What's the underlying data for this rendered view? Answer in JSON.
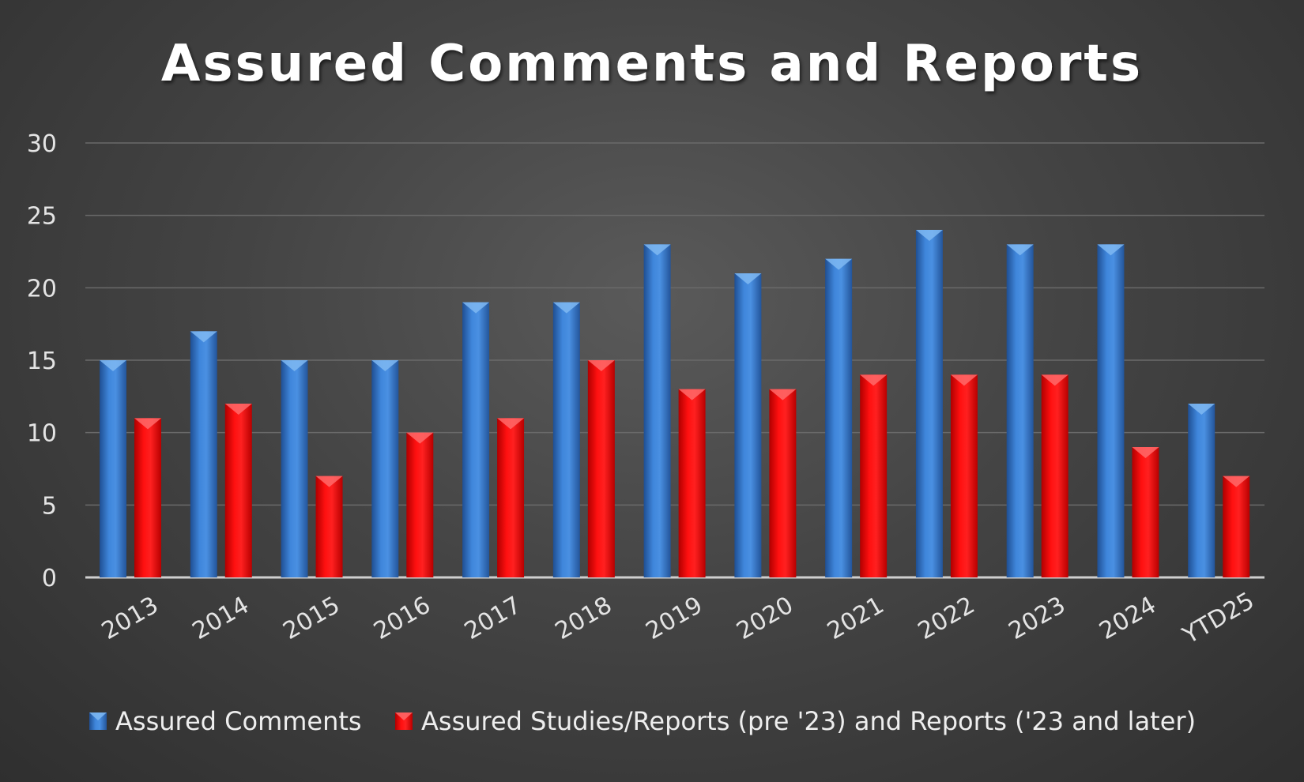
{
  "chart_data": {
    "type": "bar",
    "title": "Assured Comments and Reports",
    "categories": [
      "2013",
      "2014",
      "2015",
      "2016",
      "2017",
      "2018",
      "2019",
      "2020",
      "2021",
      "2022",
      "2023",
      "2024",
      "YTD25"
    ],
    "series": [
      {
        "name": "Assured Comments",
        "color": "#3d7fd6",
        "values": [
          15,
          17,
          15,
          15,
          19,
          19,
          23,
          21,
          22,
          24,
          23,
          23,
          12
        ]
      },
      {
        "name": "Assured Studies/Reports (pre '23) and Reports ('23 and later)",
        "color": "#ff0000",
        "values": [
          11,
          12,
          7,
          10,
          11,
          15,
          13,
          13,
          14,
          14,
          14,
          9,
          7
        ]
      }
    ],
    "yticks": [
      "0",
      "5",
      "10",
      "15",
      "20",
      "25",
      "30"
    ],
    "ylim": [
      0,
      30
    ],
    "grid": true,
    "legend_position": "bottom"
  }
}
